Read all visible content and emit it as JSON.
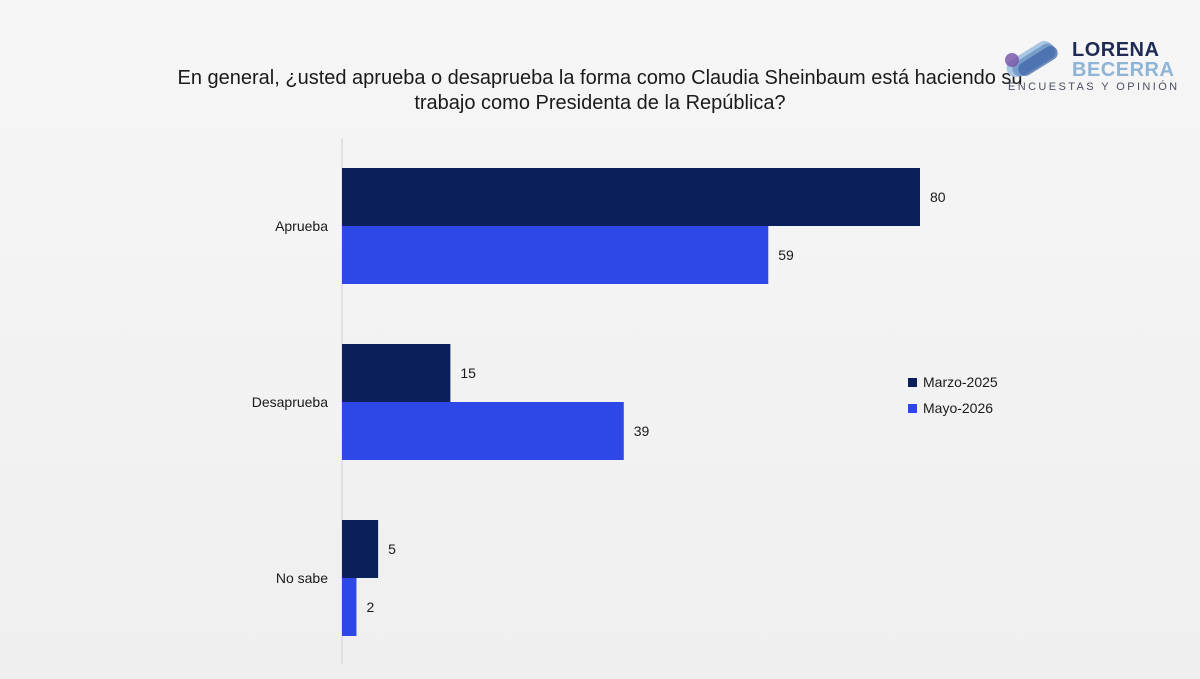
{
  "title": "En general, ¿usted aprueba o desaprueba la forma como Claudia Sheinbaum está haciendo su trabajo como Presidenta de la República?",
  "logo": {
    "line1": "LORENA",
    "line2": "BECERRA",
    "subtitle": "ENCUESTAS Y OPINIÓN"
  },
  "colors": {
    "series1": "#0b1f5b",
    "series2": "#2e48e8",
    "axis": "#d0d0d0",
    "text": "#1a1a1a"
  },
  "chart_data": {
    "type": "bar",
    "orientation": "horizontal",
    "categories": [
      "Aprueba",
      "Desaprueba",
      "No sabe"
    ],
    "series": [
      {
        "name": "Marzo-2025",
        "values": [
          80,
          15,
          5
        ]
      },
      {
        "name": "Mayo-2026",
        "values": [
          59,
          39,
          2
        ]
      }
    ],
    "xlim": [
      0,
      80
    ],
    "grid": false,
    "data_labels": true,
    "legend_position": "right"
  }
}
